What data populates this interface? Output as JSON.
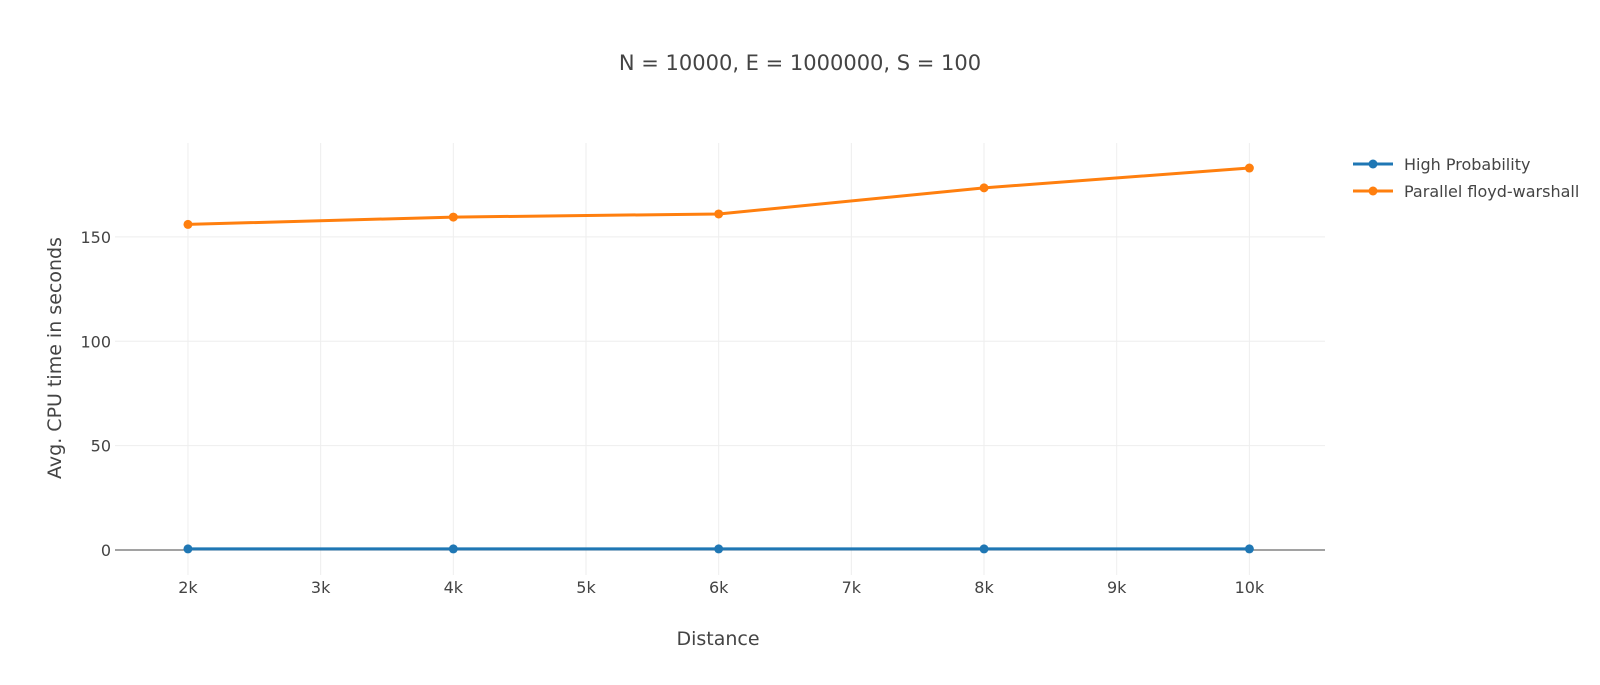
{
  "chart_data": {
    "type": "line",
    "title": "N = 10000, E = 1000000, S = 100",
    "xlabel": "Distance",
    "ylabel": "Avg. CPU time in seconds",
    "x": [
      2000,
      4000,
      6000,
      8000,
      10000
    ],
    "xlim": [
      1450,
      10570
    ],
    "ylim": [
      -12,
      195
    ],
    "x_ticks": [
      2000,
      3000,
      4000,
      5000,
      6000,
      7000,
      8000,
      9000,
      10000
    ],
    "x_tick_labels": [
      "2k",
      "3k",
      "4k",
      "5k",
      "6k",
      "7k",
      "8k",
      "9k",
      "10k"
    ],
    "y_ticks": [
      0,
      50,
      100,
      150
    ],
    "y_tick_labels": [
      "0",
      "50",
      "100",
      "150"
    ],
    "grid": true,
    "legend_position": "top-right",
    "series": [
      {
        "name": "High Probability",
        "color": "#1f77b4",
        "values": [
          0.5,
          0.5,
          0.5,
          0.5,
          0.5
        ]
      },
      {
        "name": "Parallel floyd-warshall",
        "color": "#ff7f0e",
        "values": [
          156,
          159.5,
          161,
          173.5,
          183
        ]
      }
    ]
  }
}
